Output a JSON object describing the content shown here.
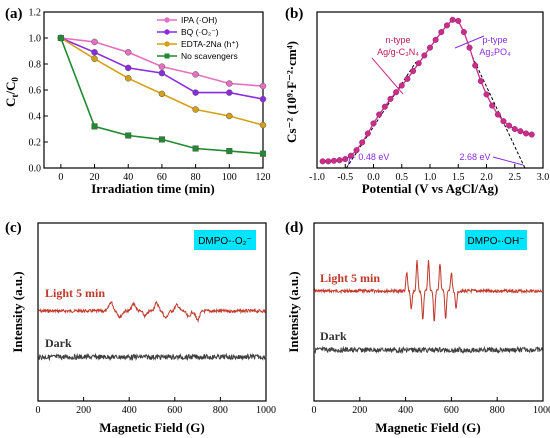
{
  "chart_data": [
    {
      "panel": "(a)",
      "type": "line",
      "xlabel": "Irradiation time (min)",
      "ylabel_main": "C",
      "ylabel_sub1": "t",
      "ylabel_sep": "/C",
      "ylabel_sub2": "0",
      "xlim": [
        -10,
        120
      ],
      "ylim": [
        0.0,
        1.2
      ],
      "xticks": [
        0,
        20,
        40,
        60,
        80,
        100,
        120
      ],
      "yticks": [
        0.0,
        0.2,
        0.4,
        0.6,
        0.8,
        1.0,
        1.2
      ],
      "ytick_labels": [
        "0.0",
        "0.2",
        "0.4",
        "0.6",
        "0.8",
        "1.0",
        "1.2"
      ],
      "legend_position": "top-right",
      "x": [
        0,
        20,
        40,
        60,
        80,
        100,
        120
      ],
      "series": [
        {
          "name": "IPA (·OH)",
          "color": "#e66fc2",
          "marker": "circle",
          "values": [
            1.0,
            0.97,
            0.89,
            0.78,
            0.72,
            0.65,
            0.63
          ]
        },
        {
          "name": "BQ (·O₂⁻)",
          "color": "#8a2be2",
          "marker": "circle",
          "values": [
            1.0,
            0.89,
            0.77,
            0.73,
            0.58,
            0.58,
            0.53
          ]
        },
        {
          "name": "EDTA-2Na (h⁺)",
          "color": "#d4a017",
          "marker": "circle",
          "values": [
            1.0,
            0.84,
            0.69,
            0.57,
            0.45,
            0.4,
            0.33
          ]
        },
        {
          "name": "No scavengers",
          "color": "#1f8a2e",
          "marker": "square",
          "values": [
            1.0,
            0.32,
            0.25,
            0.22,
            0.15,
            0.13,
            0.11
          ]
        }
      ]
    },
    {
      "panel": "(b)",
      "type": "scatter",
      "xlabel": "Potential (V vs AgCl/Ag)",
      "ylabel": "Cs⁻² (10⁹·F⁻²·cm⁴)",
      "xlim": [
        -1.0,
        3.0
      ],
      "ylim": [
        0,
        140
      ],
      "xticks": [
        -1.0,
        -0.5,
        0.0,
        0.5,
        1.0,
        1.5,
        2.0,
        2.5,
        3.0
      ],
      "xtick_labels": [
        "-1.0",
        "-0.5",
        "0.0",
        "0.5",
        "1.0",
        "1.5",
        "2.0",
        "2.5",
        "3.0"
      ],
      "color": "#cc2d8c",
      "annotations": {
        "ntype_line1": "n-type",
        "ntype_line2": "Ag/g-C₃N₄",
        "ptype_line1": "p-type",
        "ptype_line2": "Ag₃PO₄",
        "left_intercept": "− 0.48 eV",
        "right_intercept": "2.68 eV"
      },
      "intercepts": [
        -0.48,
        2.68
      ],
      "x": [
        -0.9,
        -0.8,
        -0.7,
        -0.6,
        -0.5,
        -0.4,
        -0.3,
        -0.2,
        -0.1,
        0.0,
        0.1,
        0.2,
        0.3,
        0.4,
        0.5,
        0.6,
        0.7,
        0.8,
        0.9,
        1.0,
        1.1,
        1.2,
        1.3,
        1.4,
        1.5,
        1.6,
        1.7,
        1.8,
        1.9,
        2.0,
        2.1,
        2.2,
        2.3,
        2.4,
        2.5,
        2.6,
        2.7,
        2.8
      ],
      "values": [
        6,
        6,
        6.5,
        7,
        8,
        11,
        16,
        23,
        31,
        40,
        48,
        55,
        62,
        68,
        74,
        80,
        87,
        94,
        101,
        108,
        115,
        122,
        128,
        133,
        132,
        122,
        108,
        92,
        78,
        66,
        56,
        48,
        42,
        38,
        35,
        33,
        31,
        30
      ]
    },
    {
      "panel": "(c)",
      "type": "line",
      "xlabel": "Magnetic Field (G)",
      "ylabel": "Intensity (a.u.)",
      "xlim": [
        0,
        1000
      ],
      "xticks": [
        0,
        200,
        400,
        600,
        800,
        1000
      ],
      "legend_box": "DMPO-·O₂⁻",
      "series": [
        {
          "name": "Light 5 min",
          "color": "#c0392b",
          "trace": "O2-"
        },
        {
          "name": "Dark",
          "color": "#404040",
          "trace": "noise"
        }
      ]
    },
    {
      "panel": "(d)",
      "type": "line",
      "xlabel": "Magnetic Field (G)",
      "ylabel": "Intensity (a.u.)",
      "xlim": [
        0,
        1000
      ],
      "xticks": [
        0,
        200,
        400,
        600,
        800,
        1000
      ],
      "legend_box": "DMPO-·OH⁻",
      "series": [
        {
          "name": "Light 5 min",
          "color": "#c0392b",
          "trace": "OH"
        },
        {
          "name": "Dark",
          "color": "#404040",
          "trace": "noise"
        }
      ]
    }
  ]
}
